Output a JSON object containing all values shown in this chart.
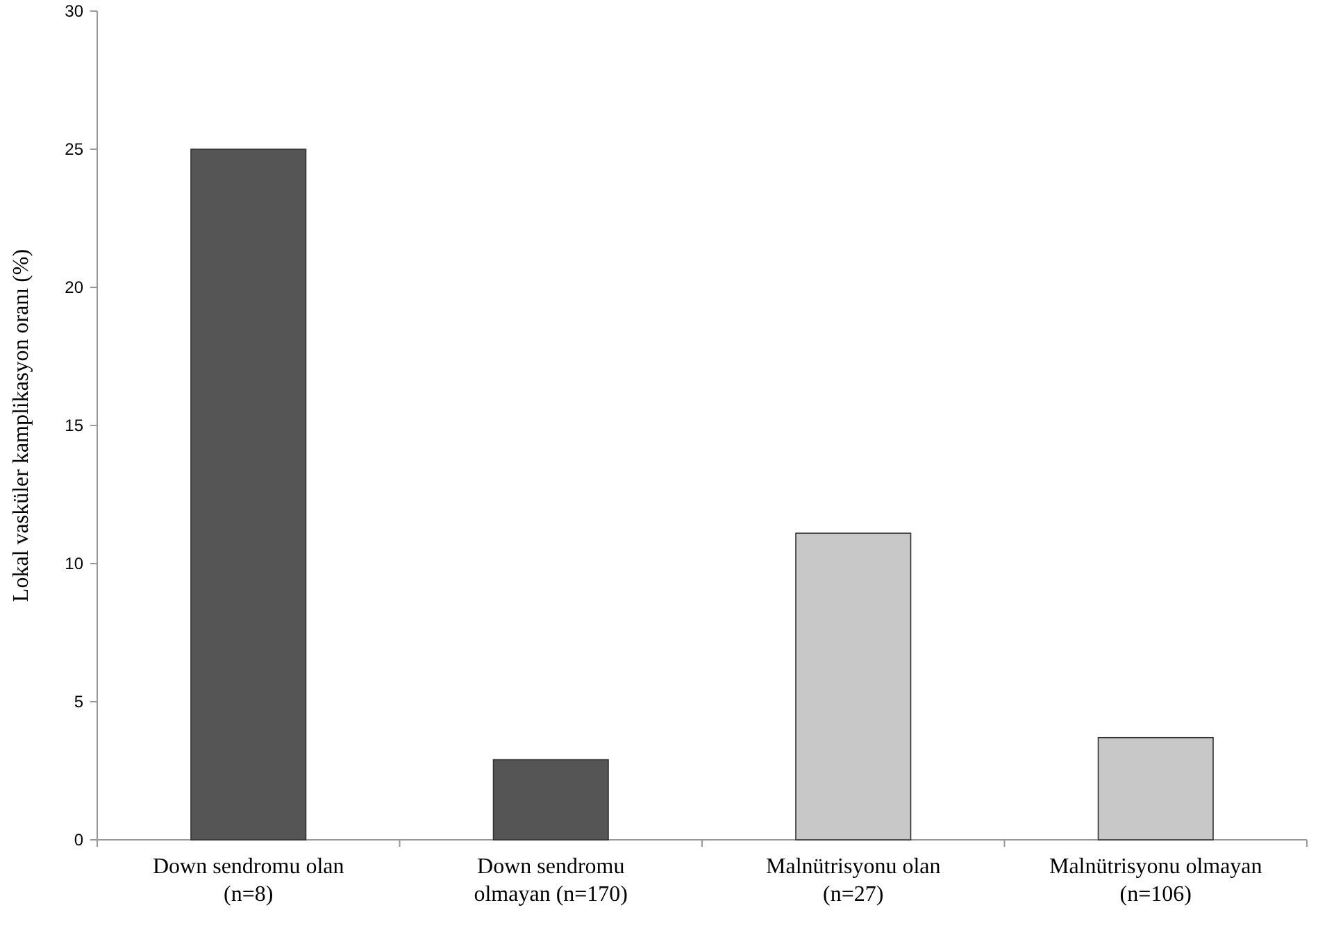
{
  "chart_data": {
    "type": "bar",
    "ylabel": "Lokal vasküler kamplikasyon oranı (%)",
    "categories": [
      "Down sendromu olan\n(n=8)",
      "Down sendromu\nolmayan (n=170)",
      "Malnütrisyonu olan\n(n=27)",
      "Malnütrisyonu olmayan\n(n=106)"
    ],
    "values": [
      25,
      2.9,
      11.1,
      3.7
    ],
    "colors": [
      "#555555",
      "#555555",
      "#c8c8c8",
      "#c8c8c8"
    ],
    "ylim": [
      0,
      30
    ],
    "yticks": [
      0,
      5,
      10,
      15,
      20,
      25,
      30
    ],
    "grid": false
  }
}
